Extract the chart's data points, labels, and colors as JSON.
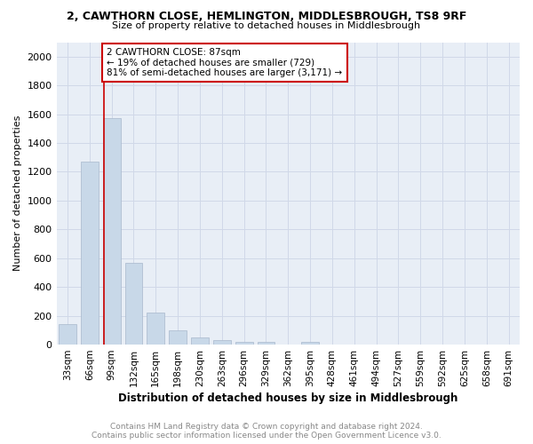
{
  "title1": "2, CAWTHORN CLOSE, HEMLINGTON, MIDDLESBROUGH, TS8 9RF",
  "title2": "Size of property relative to detached houses in Middlesbrough",
  "xlabel": "Distribution of detached houses by size in Middlesbrough",
  "ylabel": "Number of detached properties",
  "footer": "Contains HM Land Registry data © Crown copyright and database right 2024.\nContains public sector information licensed under the Open Government Licence v3.0.",
  "categories": [
    "33sqm",
    "66sqm",
    "99sqm",
    "132sqm",
    "165sqm",
    "198sqm",
    "230sqm",
    "263sqm",
    "296sqm",
    "329sqm",
    "362sqm",
    "395sqm",
    "428sqm",
    "461sqm",
    "494sqm",
    "527sqm",
    "559sqm",
    "592sqm",
    "625sqm",
    "658sqm",
    "691sqm"
  ],
  "values": [
    140,
    1270,
    1570,
    570,
    220,
    100,
    50,
    30,
    20,
    20,
    0,
    20,
    0,
    0,
    0,
    0,
    0,
    0,
    0,
    0,
    0
  ],
  "bar_color": "#c8d8e8",
  "bar_edge_color": "#a8b8cc",
  "grid_color": "#d0d8e8",
  "annotation_text_line1": "2 CAWTHORN CLOSE: 87sqm",
  "annotation_text_line2": "← 19% of detached houses are smaller (729)",
  "annotation_text_line3": "81% of semi-detached houses are larger (3,171) →",
  "annotation_box_color": "#ffffff",
  "annotation_box_edge": "#cc0000",
  "red_line_x": 1.636,
  "ylim": [
    0,
    2100
  ],
  "yticks": [
    0,
    200,
    400,
    600,
    800,
    1000,
    1200,
    1400,
    1600,
    1800,
    2000
  ],
  "bg_color": "#e8eef6"
}
